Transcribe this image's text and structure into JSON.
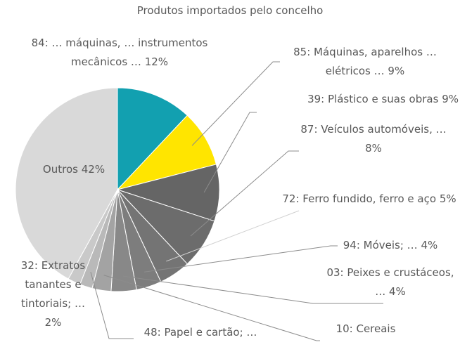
{
  "chart_data": {
    "type": "pie",
    "title": "Produtos importados pelo concelho",
    "categories": [
      "84: … máquinas, … instrumentos mecânicos …",
      "85: Máquinas, aparelhos … elétricos …",
      "39: Plástico e suas obras",
      "87: Veículos automóveis, …",
      "72: Ferro fundido, ferro e aço",
      "94: Móveis; …",
      "03: Peixes e crustáceos, …",
      "10: Cereais",
      "48: Papel e cartão; …",
      "32: Extratos tanantes e tintoriais; …",
      "Outros"
    ],
    "values": [
      12,
      9,
      9,
      8,
      5,
      4,
      4,
      3,
      2,
      2,
      42
    ],
    "value_labels": [
      "12%",
      "9%",
      "9%",
      "8%",
      "5%",
      "4%",
      "4%",
      null,
      null,
      "2%",
      "42%"
    ],
    "colors": [
      "#12a0b0",
      "#ffe500",
      "#656565",
      "#6c6c6c",
      "#747474",
      "#7d7d7d",
      "#888888",
      "#a3a3a3",
      "#b9b9b9",
      "#c9c9c9",
      "#d9d9d9"
    ]
  }
}
